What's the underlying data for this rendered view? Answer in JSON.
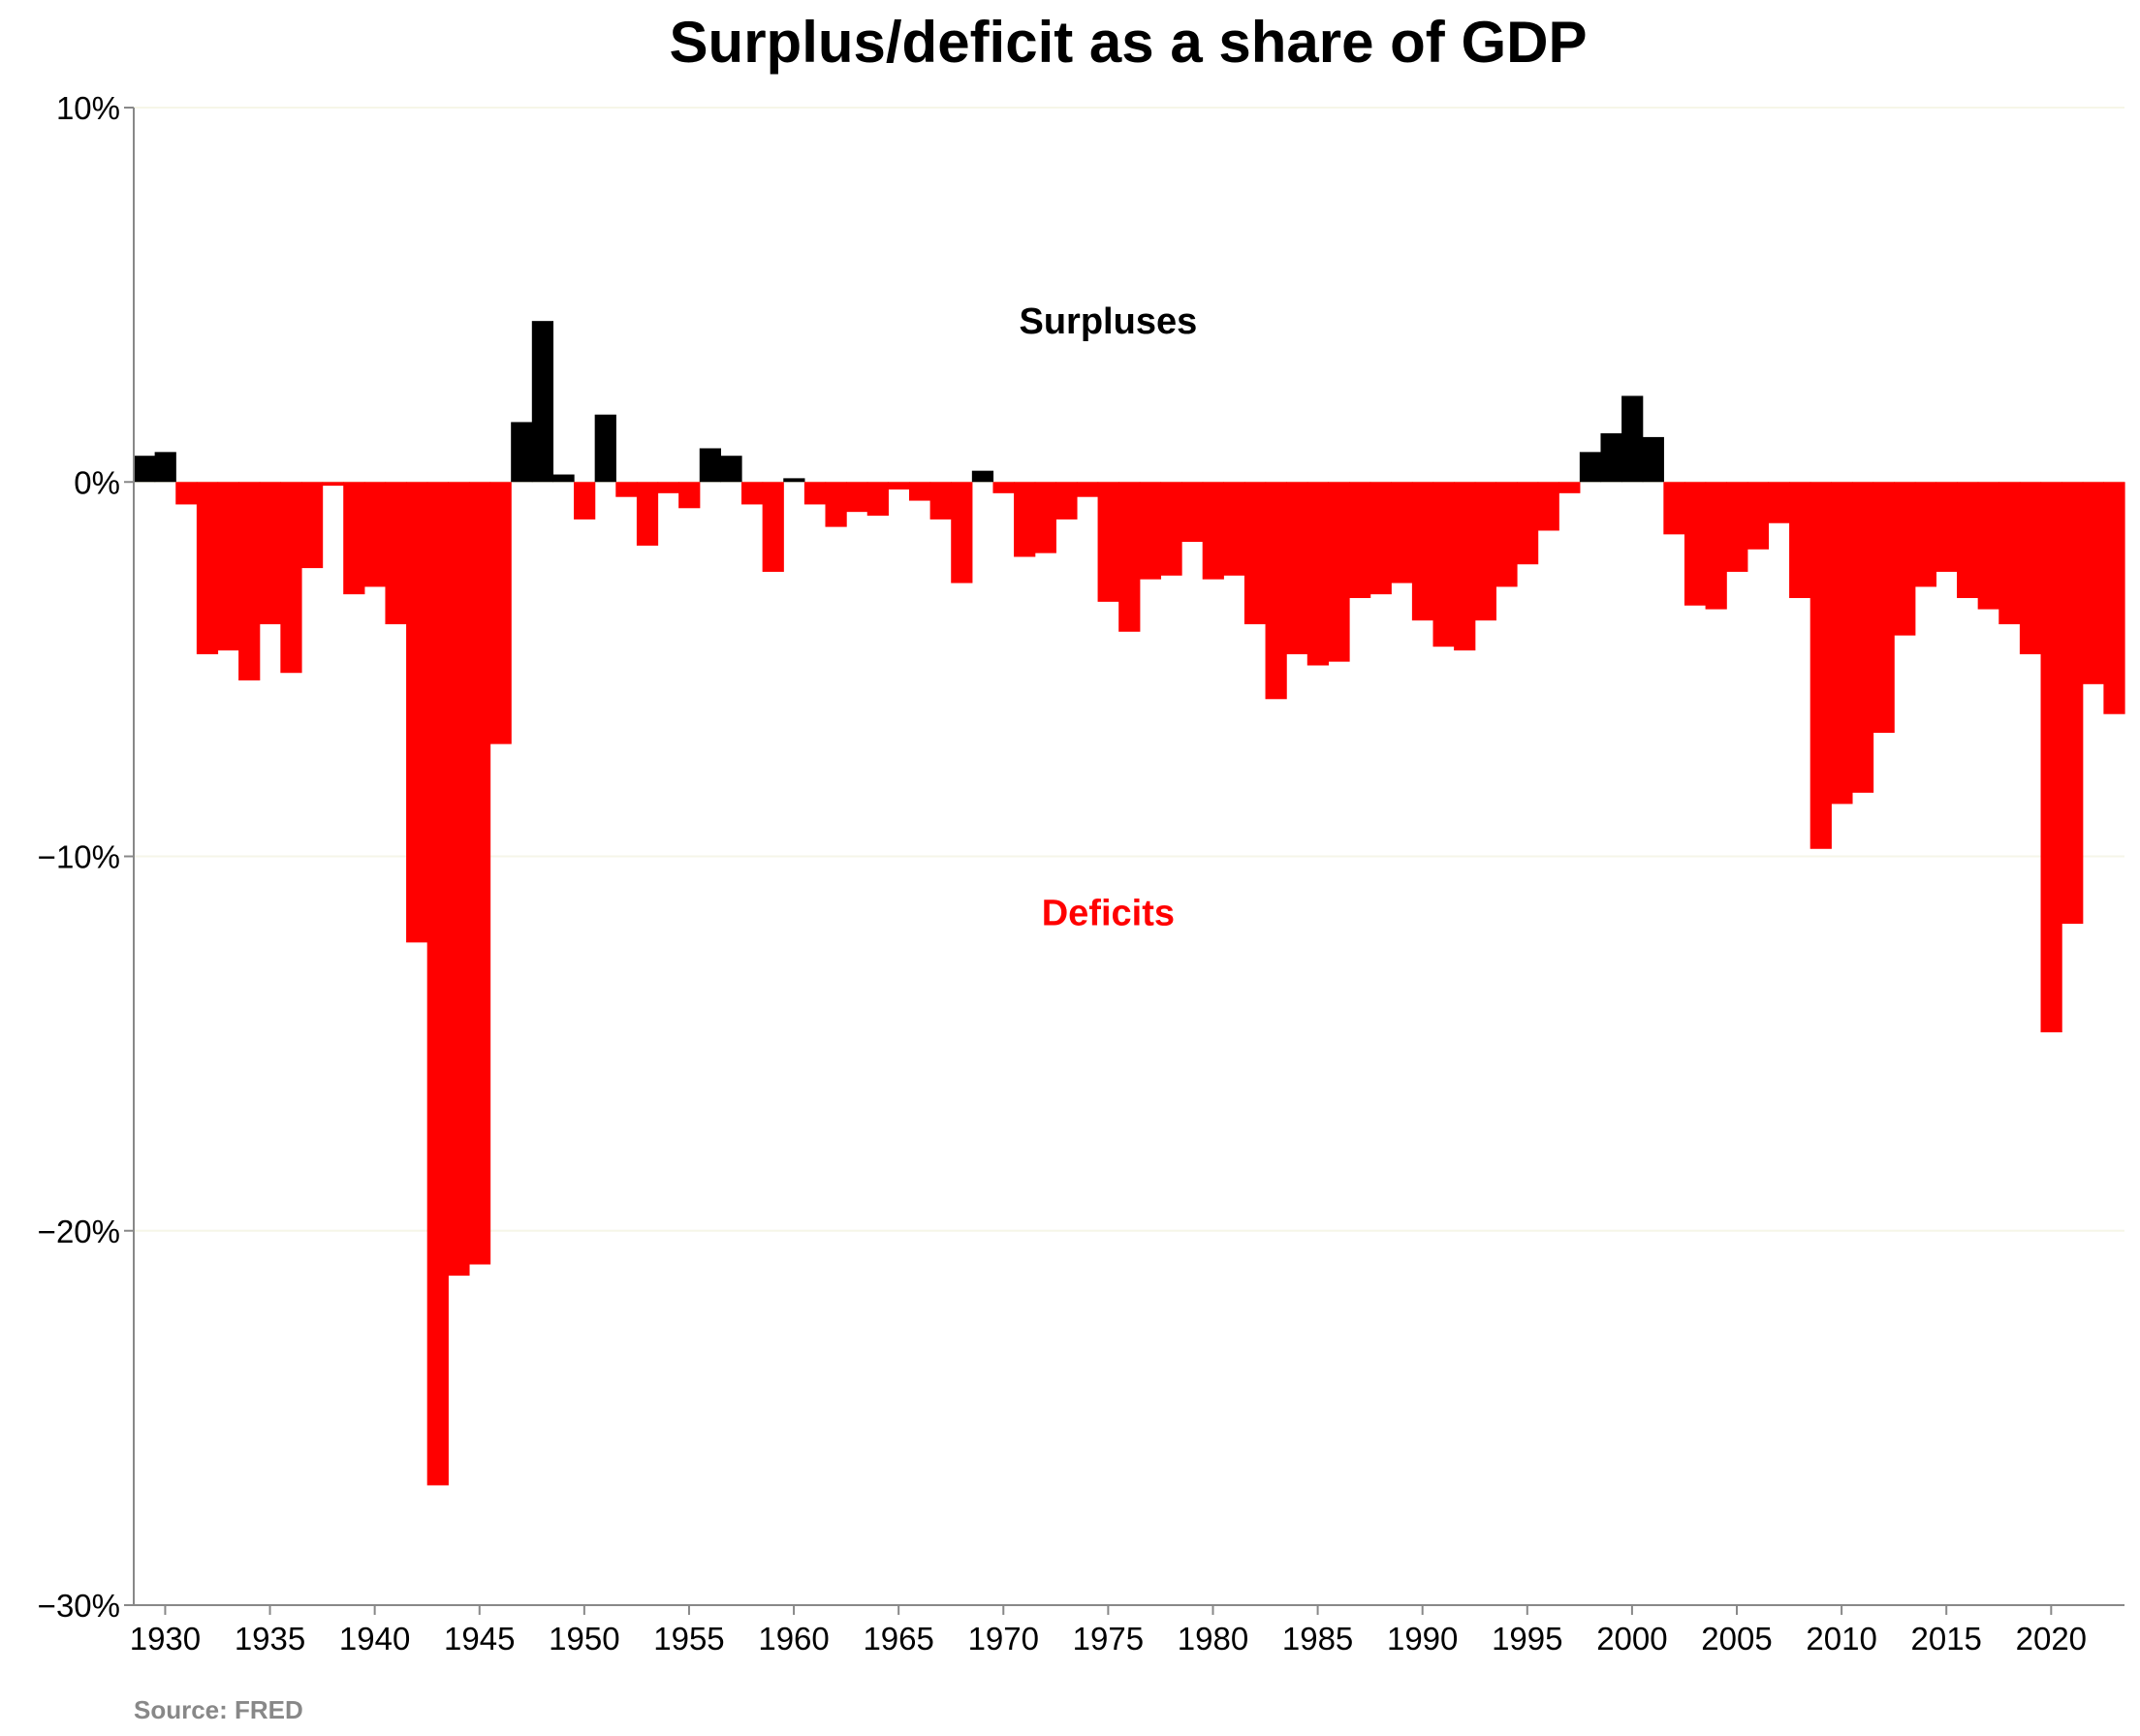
{
  "chart_data": {
    "type": "bar",
    "title": "Surplus/deficit as a share of GDP",
    "xlabel": "",
    "ylabel": "",
    "source": "Source: FRED",
    "ylim": [
      -30,
      10
    ],
    "xlim": [
      1928.5,
      2023.5
    ],
    "y_ticks": [
      10,
      0,
      -10,
      -20,
      -30
    ],
    "y_tick_labels": [
      "10%",
      "0%",
      "−10%",
      "−20%",
      "−30%"
    ],
    "x_ticks": [
      1930,
      1935,
      1940,
      1945,
      1950,
      1955,
      1960,
      1965,
      1970,
      1975,
      1980,
      1985,
      1990,
      1995,
      2000,
      2005,
      2010,
      2015,
      2020
    ],
    "x_tick_labels": [
      "1930",
      "1935",
      "1940",
      "1945",
      "1950",
      "1955",
      "1960",
      "1965",
      "1970",
      "1975",
      "1980",
      "1985",
      "1990",
      "1995",
      "2000",
      "2005",
      "2010",
      "2015",
      "2020"
    ],
    "annotations": [
      {
        "text": "Surpluses",
        "x": 1975,
        "y": 4.3
      },
      {
        "text": "Deficits",
        "x": 1975,
        "y": -11.5
      }
    ],
    "colors": {
      "surplus": "#000000",
      "deficit": "#ff0000",
      "axis": "#888888",
      "grid": "#f6f6e8"
    },
    "x": [
      1929,
      1930,
      1931,
      1932,
      1933,
      1934,
      1935,
      1936,
      1937,
      1938,
      1939,
      1940,
      1941,
      1942,
      1943,
      1944,
      1945,
      1946,
      1947,
      1948,
      1949,
      1950,
      1951,
      1952,
      1953,
      1954,
      1955,
      1956,
      1957,
      1958,
      1959,
      1960,
      1961,
      1962,
      1963,
      1964,
      1965,
      1966,
      1967,
      1968,
      1969,
      1970,
      1971,
      1972,
      1973,
      1974,
      1975,
      1976,
      1977,
      1978,
      1979,
      1980,
      1981,
      1982,
      1983,
      1984,
      1985,
      1986,
      1987,
      1988,
      1989,
      1990,
      1991,
      1992,
      1993,
      1994,
      1995,
      1996,
      1997,
      1998,
      1999,
      2000,
      2001,
      2002,
      2003,
      2004,
      2005,
      2006,
      2007,
      2008,
      2009,
      2010,
      2011,
      2012,
      2013,
      2014,
      2015,
      2016,
      2017,
      2018,
      2019,
      2020,
      2021,
      2022,
      2023
    ],
    "values": [
      0.7,
      0.8,
      -0.6,
      -4.6,
      -4.5,
      -5.3,
      -3.8,
      -5.1,
      -2.3,
      -0.1,
      -3.0,
      -2.8,
      -3.8,
      -12.3,
      -26.8,
      -21.2,
      -20.9,
      -7.0,
      1.6,
      4.3,
      0.2,
      -1.0,
      1.8,
      -0.4,
      -1.7,
      -0.3,
      -0.7,
      0.9,
      0.7,
      -0.6,
      -2.4,
      0.1,
      -0.6,
      -1.2,
      -0.8,
      -0.9,
      -0.2,
      -0.5,
      -1.0,
      -2.7,
      0.3,
      -0.3,
      -2.0,
      -1.9,
      -1.0,
      -0.4,
      -3.2,
      -4.0,
      -2.6,
      -2.5,
      -1.6,
      -2.6,
      -2.5,
      -3.8,
      -5.8,
      -4.6,
      -4.9,
      -4.8,
      -3.1,
      -3.0,
      -2.7,
      -3.7,
      -4.4,
      -4.5,
      -3.7,
      -2.8,
      -2.2,
      -1.3,
      -0.3,
      0.8,
      1.3,
      2.3,
      1.2,
      -1.4,
      -3.3,
      -3.4,
      -2.4,
      -1.8,
      -1.1,
      -3.1,
      -9.8,
      -8.6,
      -8.3,
      -6.7,
      -4.1,
      -2.8,
      -2.4,
      -3.1,
      -3.4,
      -3.8,
      -4.6,
      -14.7,
      -11.8,
      -5.4,
      -6.2
    ]
  }
}
